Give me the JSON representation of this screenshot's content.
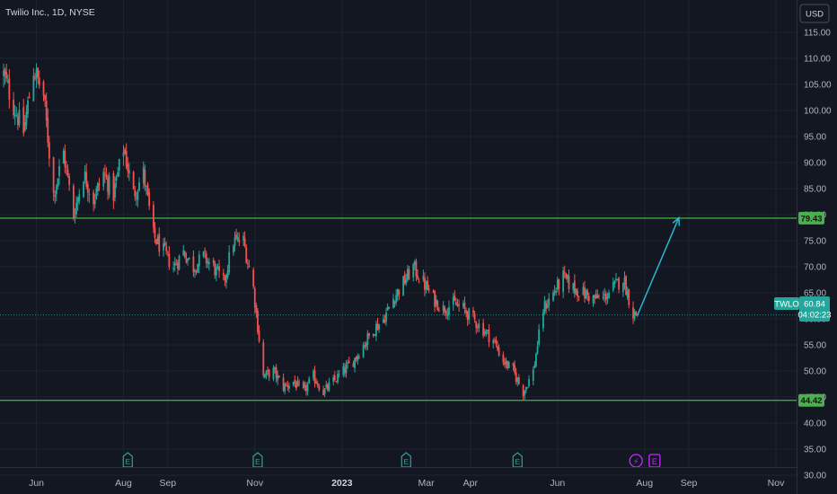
{
  "chart_data": {
    "type": "candlestick",
    "title": "Twilio Inc., 1D, NYSE",
    "currency": "USD",
    "symbol": "TWLO",
    "last_price": "60.84",
    "countdown": "04:02:23",
    "y_ticks": [
      "30.00",
      "35.00",
      "40.00",
      "45.00",
      "50.00",
      "55.00",
      "60.00",
      "65.00",
      "70.00",
      "75.00",
      "80.00",
      "85.00",
      "90.00",
      "95.00",
      "100.00",
      "105.00",
      "110.00",
      "115.00"
    ],
    "ylim": [
      28.5,
      116.5
    ],
    "x_ticks": [
      {
        "label": "Jun",
        "date": "2022-06-01"
      },
      {
        "label": "Aug",
        "date": "2022-08-01"
      },
      {
        "label": "Sep",
        "date": "2022-09-01"
      },
      {
        "label": "Nov",
        "date": "2022-11-01"
      },
      {
        "label": "2023",
        "date": "2023-01-01",
        "bold": true
      },
      {
        "label": "Mar",
        "date": "2023-03-01"
      },
      {
        "label": "Apr",
        "date": "2023-04-01"
      },
      {
        "label": "Jun",
        "date": "2023-06-01"
      },
      {
        "label": "Aug",
        "date": "2023-08-01"
      },
      {
        "label": "Sep",
        "date": "2023-09-01"
      },
      {
        "label": "Nov",
        "date": "2023-11-01"
      }
    ],
    "levels": [
      {
        "value": 79.43,
        "label": "79.43"
      },
      {
        "value": 44.42,
        "label": "44.42"
      }
    ],
    "events": [
      {
        "date": "2022-08-04",
        "type": "earnings",
        "label": "E"
      },
      {
        "date": "2022-11-03",
        "type": "earnings",
        "label": "E"
      },
      {
        "date": "2023-02-15",
        "type": "earnings",
        "label": "E"
      },
      {
        "date": "2023-05-04",
        "type": "earnings",
        "label": "E"
      },
      {
        "date": "2023-07-26",
        "type": "dividend-split",
        "label": "⚡"
      },
      {
        "date": "2023-08-08",
        "type": "earnings-upcoming",
        "label": "E"
      }
    ],
    "projection": {
      "start": {
        "date": "2023-07-27",
        "value": 60.8
      },
      "end": {
        "date": "2023-08-25",
        "value": 79.5
      }
    },
    "series": [
      {
        "date": "2022-05-09",
        "close": 107
      },
      {
        "date": "2022-05-16",
        "close": 101
      },
      {
        "date": "2022-05-23",
        "close": 96
      },
      {
        "date": "2022-05-30",
        "close": 108
      },
      {
        "date": "2022-06-06",
        "close": 103
      },
      {
        "date": "2022-06-13",
        "close": 84
      },
      {
        "date": "2022-06-20",
        "close": 92
      },
      {
        "date": "2022-06-27",
        "close": 80
      },
      {
        "date": "2022-07-04",
        "close": 88
      },
      {
        "date": "2022-07-11",
        "close": 83
      },
      {
        "date": "2022-07-18",
        "close": 88
      },
      {
        "date": "2022-07-25",
        "close": 84
      },
      {
        "date": "2022-08-01",
        "close": 93
      },
      {
        "date": "2022-08-08",
        "close": 84
      },
      {
        "date": "2022-08-15",
        "close": 88
      },
      {
        "date": "2022-08-22",
        "close": 76
      },
      {
        "date": "2022-08-29",
        "close": 73
      },
      {
        "date": "2022-09-05",
        "close": 70
      },
      {
        "date": "2022-09-12",
        "close": 73
      },
      {
        "date": "2022-09-19",
        "close": 70
      },
      {
        "date": "2022-09-26",
        "close": 72
      },
      {
        "date": "2022-10-03",
        "close": 70
      },
      {
        "date": "2022-10-10",
        "close": 67
      },
      {
        "date": "2022-10-17",
        "close": 75
      },
      {
        "date": "2022-10-24",
        "close": 75
      },
      {
        "date": "2022-10-31",
        "close": 66
      },
      {
        "date": "2022-11-07",
        "close": 49
      },
      {
        "date": "2022-11-14",
        "close": 50
      },
      {
        "date": "2022-11-21",
        "close": 47
      },
      {
        "date": "2022-11-28",
        "close": 48
      },
      {
        "date": "2022-12-05",
        "close": 46
      },
      {
        "date": "2022-12-12",
        "close": 49
      },
      {
        "date": "2022-12-19",
        "close": 46
      },
      {
        "date": "2022-12-26",
        "close": 48
      },
      {
        "date": "2023-01-02",
        "close": 50
      },
      {
        "date": "2023-01-09",
        "close": 52
      },
      {
        "date": "2023-01-16",
        "close": 55
      },
      {
        "date": "2023-01-23",
        "close": 58
      },
      {
        "date": "2023-01-30",
        "close": 60
      },
      {
        "date": "2023-02-06",
        "close": 64
      },
      {
        "date": "2023-02-13",
        "close": 67
      },
      {
        "date": "2023-02-20",
        "close": 70
      },
      {
        "date": "2023-02-27",
        "close": 67
      },
      {
        "date": "2023-03-06",
        "close": 64
      },
      {
        "date": "2023-03-13",
        "close": 62
      },
      {
        "date": "2023-03-20",
        "close": 63
      },
      {
        "date": "2023-03-27",
        "close": 62
      },
      {
        "date": "2023-04-03",
        "close": 60
      },
      {
        "date": "2023-04-10",
        "close": 58
      },
      {
        "date": "2023-04-17",
        "close": 56
      },
      {
        "date": "2023-04-24",
        "close": 52
      },
      {
        "date": "2023-05-01",
        "close": 50
      },
      {
        "date": "2023-05-08",
        "close": 46
      },
      {
        "date": "2023-05-15",
        "close": 50
      },
      {
        "date": "2023-05-22",
        "close": 62
      },
      {
        "date": "2023-05-29",
        "close": 65
      },
      {
        "date": "2023-06-05",
        "close": 68
      },
      {
        "date": "2023-06-12",
        "close": 66
      },
      {
        "date": "2023-06-19",
        "close": 65
      },
      {
        "date": "2023-06-26",
        "close": 64
      },
      {
        "date": "2023-07-03",
        "close": 64
      },
      {
        "date": "2023-07-10",
        "close": 66
      },
      {
        "date": "2023-07-17",
        "close": 68
      },
      {
        "date": "2023-07-24",
        "close": 61
      }
    ],
    "colors": {
      "background": "#131722",
      "up": "#26a69a",
      "down": "#ef5350",
      "level_line": "#4caf50",
      "level_label_bg": "#4caf50",
      "projection": "#29b6d2",
      "earnings_icon": "#26a69a",
      "dividend_icon": "#c22bff"
    }
  }
}
